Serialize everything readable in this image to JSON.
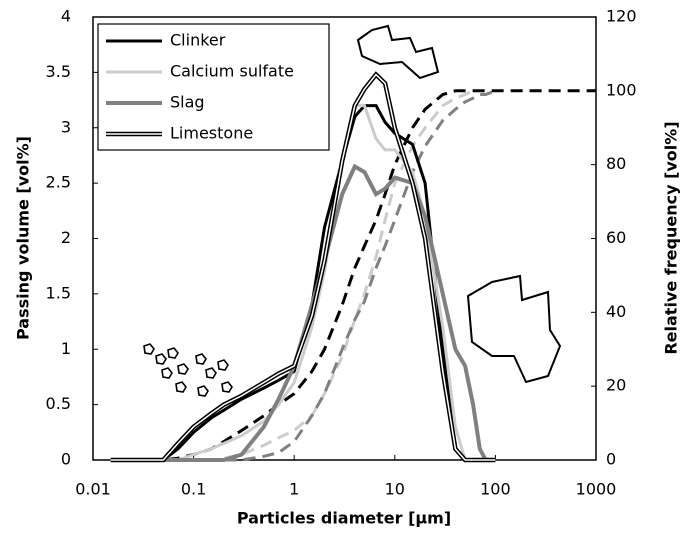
{
  "chart_data": {
    "type": "line",
    "xlabel": "Particles diameter [µm]",
    "ylabel": "Passing volume [vol%]",
    "y2label": "Relative frequency [vol%]",
    "xscale": "log",
    "xlim": [
      0.01,
      1000
    ],
    "xticks": [
      0.01,
      0.1,
      1,
      10,
      100,
      1000
    ],
    "ylim": [
      0,
      4
    ],
    "yticks": [
      0,
      0.5,
      1,
      1.5,
      2,
      2.5,
      3,
      3.5,
      4
    ],
    "y2lim": [
      0,
      120
    ],
    "y2ticks": [
      0,
      20,
      40,
      60,
      80,
      100,
      120
    ],
    "grid": false,
    "legend": "upper left",
    "x": [
      0.015,
      0.03,
      0.05,
      0.07,
      0.1,
      0.15,
      0.2,
      0.3,
      0.5,
      0.7,
      1,
      1.5,
      2,
      3,
      4,
      5,
      6.5,
      8,
      10,
      15,
      20,
      30,
      40,
      50,
      60,
      70,
      80,
      100,
      200,
      500,
      1000
    ],
    "series": [
      {
        "name": "Clinker",
        "color": "#000000",
        "width": 3,
        "style": "solid",
        "values": [
          0,
          0,
          0,
          0.1,
          0.25,
          0.38,
          0.45,
          0.55,
          0.65,
          0.72,
          0.8,
          1.4,
          2.1,
          2.7,
          3.1,
          3.2,
          3.2,
          3.05,
          2.95,
          2.85,
          2.5,
          1.0,
          0.1,
          0,
          0,
          0,
          0,
          0,
          null,
          null,
          null
        ],
        "cumulative": [
          0,
          0,
          0,
          0.5,
          1.5,
          3,
          5,
          8,
          12,
          15,
          18,
          24,
          30,
          42,
          52,
          58,
          65,
          72,
          80,
          90,
          95,
          99,
          100,
          100,
          100,
          100,
          100,
          100,
          100,
          100,
          100
        ]
      },
      {
        "name": "Calcium sulfate",
        "color": "#cccccc",
        "width": 3,
        "style": "solid",
        "values": [
          0,
          0,
          0,
          0,
          0.05,
          0.1,
          0.15,
          0.22,
          0.35,
          0.5,
          0.7,
          1.2,
          1.7,
          2.7,
          3.2,
          3.2,
          2.9,
          2.8,
          2.8,
          2.6,
          2.2,
          1.2,
          0.3,
          0,
          0,
          0,
          0,
          0,
          null,
          null,
          null
        ],
        "cumulative": [
          0,
          0,
          0,
          0,
          0,
          0,
          0.5,
          1.5,
          4,
          6,
          8,
          12,
          18,
          28,
          38,
          45,
          55,
          65,
          75,
          85,
          90,
          96,
          98,
          99,
          100,
          null,
          null,
          null,
          null,
          null,
          null
        ]
      },
      {
        "name": "Slag",
        "color": "#808080",
        "width": 4,
        "style": "solid",
        "values": [
          0,
          0,
          0,
          0,
          0,
          0,
          0,
          0.05,
          0.3,
          0.55,
          0.85,
          1.4,
          1.8,
          2.4,
          2.65,
          2.6,
          2.4,
          2.45,
          2.55,
          2.5,
          2.2,
          1.5,
          1.0,
          0.85,
          0.5,
          0.1,
          0,
          0,
          null,
          null,
          null
        ],
        "cumulative": [
          0,
          0,
          0,
          0,
          0,
          0,
          0,
          0,
          1,
          2,
          5,
          12,
          18,
          30,
          38,
          43,
          52,
          58,
          65,
          78,
          85,
          92,
          95,
          97,
          98,
          99,
          99,
          100,
          null,
          null,
          null
        ]
      },
      {
        "name": "Limestone",
        "color": "#000000",
        "width": 1.5,
        "style": "double",
        "values": [
          0,
          0,
          0,
          0.15,
          0.3,
          0.42,
          0.5,
          0.58,
          0.7,
          0.78,
          0.85,
          1.3,
          1.8,
          2.7,
          3.2,
          3.35,
          3.48,
          3.4,
          3.0,
          2.5,
          2.0,
          0.8,
          0.1,
          0,
          0,
          0,
          0,
          0,
          null,
          null,
          null
        ]
      }
    ]
  }
}
